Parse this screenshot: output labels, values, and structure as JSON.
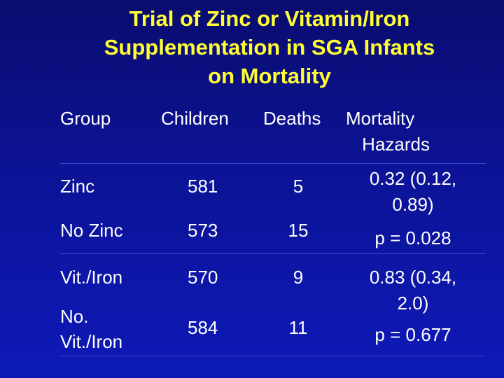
{
  "title": {
    "line1": "Trial of Zinc or Vitamin/Iron",
    "line2": "Supplementation in SGA Infants",
    "line3": "on Mortality"
  },
  "table": {
    "headers": {
      "group": "Group",
      "children": "Children",
      "deaths": "Deaths",
      "hazards_line1": "Mortality",
      "hazards_line2": "Hazards"
    },
    "rows": [
      {
        "group_line1": "Zinc",
        "group_line2": "",
        "children": "581",
        "deaths": "5"
      },
      {
        "group_line1": "No Zinc",
        "group_line2": "",
        "children": "573",
        "deaths": "15"
      },
      {
        "group_line1": "Vit./Iron",
        "group_line2": "",
        "children": "570",
        "deaths": "9"
      },
      {
        "group_line1": "No.",
        "group_line2": "Vit./Iron",
        "children": "584",
        "deaths": "11"
      }
    ],
    "hazards": [
      {
        "line1": "0.32 (0.12,",
        "line2": "0.89)",
        "line3": "p = 0.028"
      },
      {
        "line1": "0.83 (0.34,",
        "line2": "2.0)",
        "line3": "p = 0.677"
      }
    ]
  }
}
